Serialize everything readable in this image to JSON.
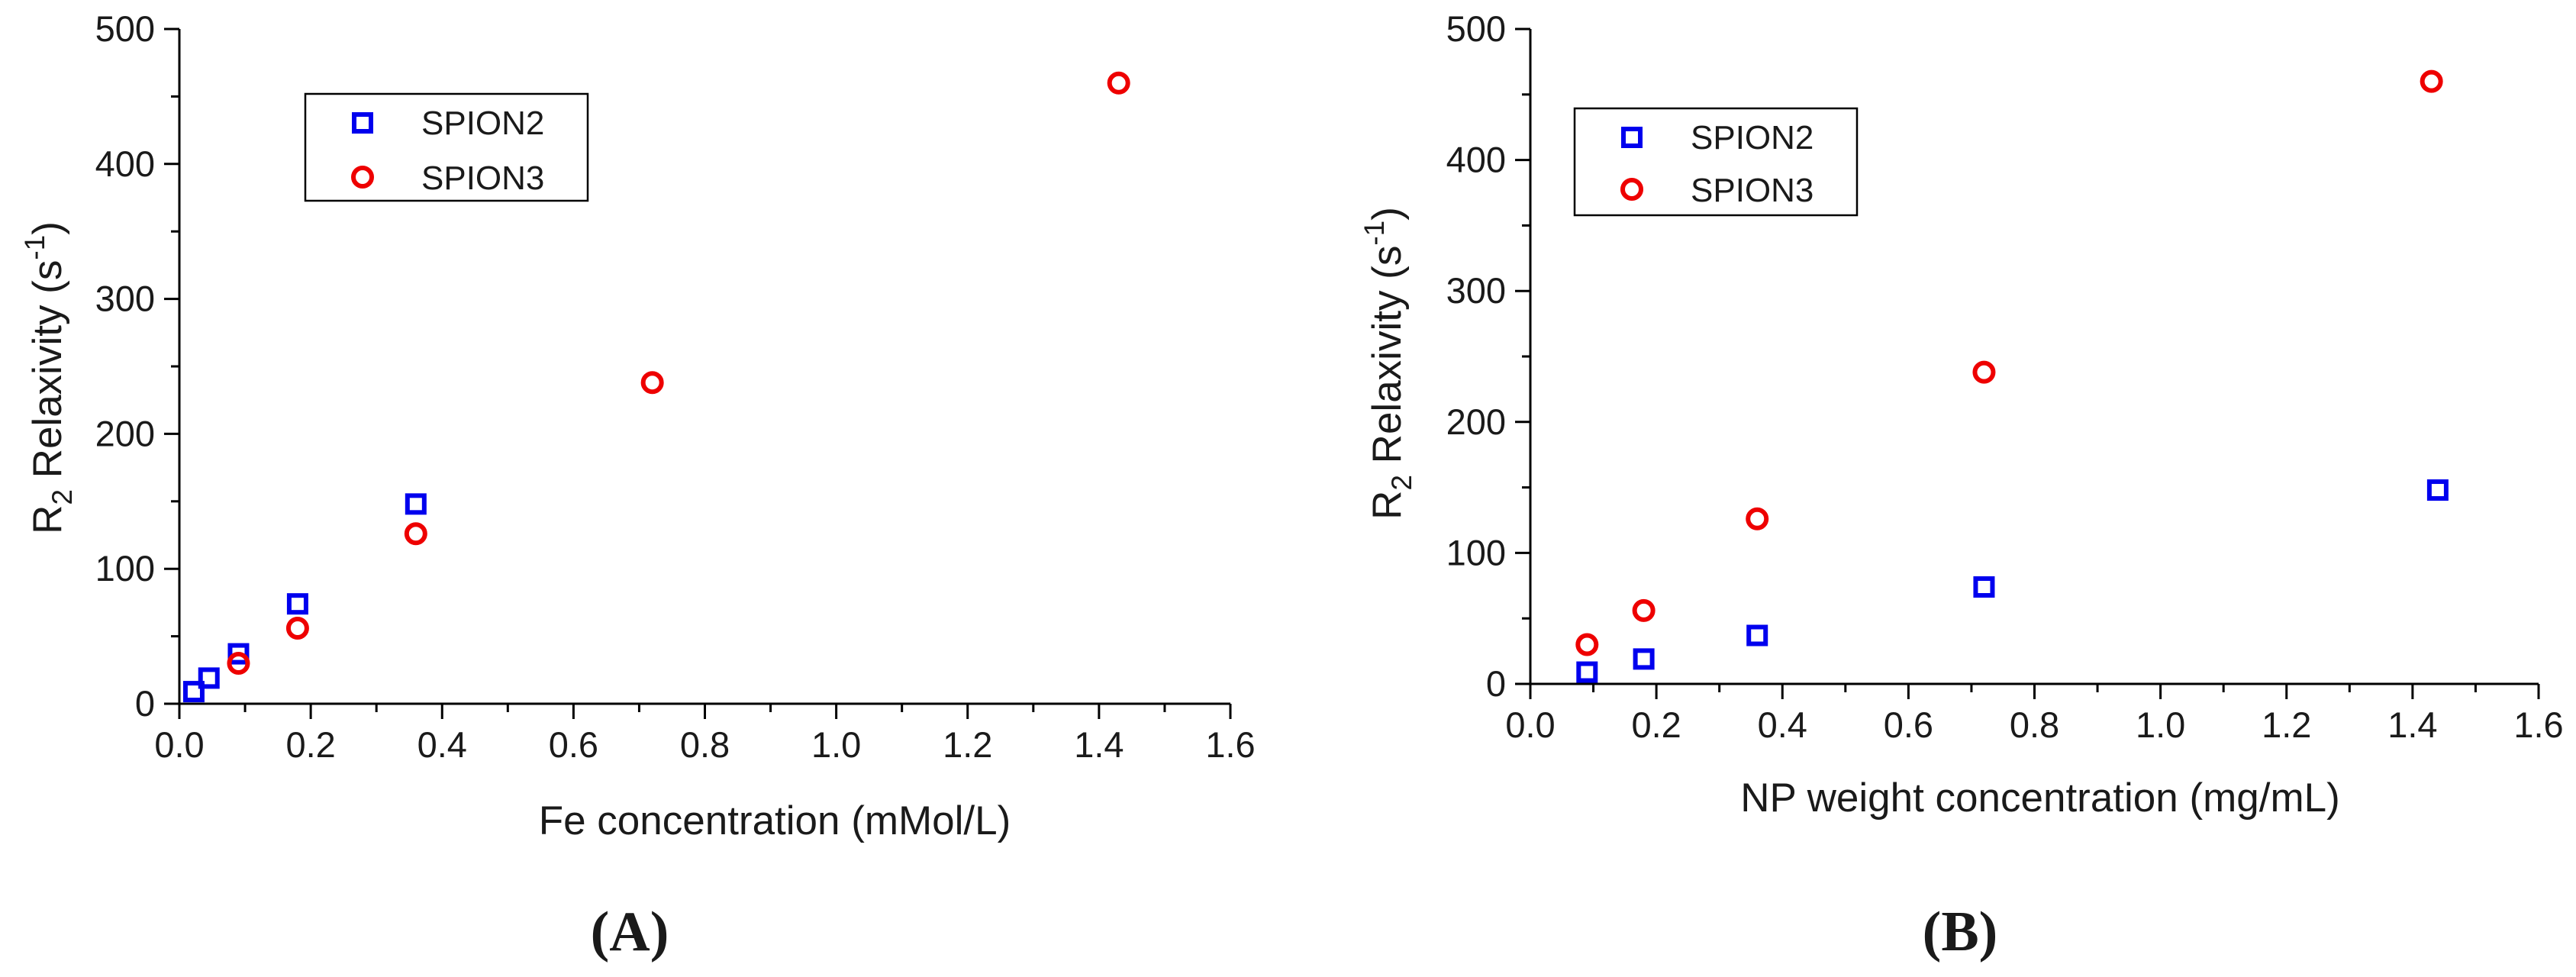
{
  "chart_data": [
    {
      "type": "scatter",
      "panel_label": "(A)",
      "xlabel": "Fe concentration (mMol/L)",
      "ylabel": {
        "main": "R",
        "sub": "2",
        "rest": " Relaxivity (s",
        "sup": "-1",
        "close": ")"
      },
      "xlim": [
        0.0,
        1.6
      ],
      "ylim": [
        0,
        500
      ],
      "xticks": [
        "0.0",
        "0.2",
        "0.4",
        "0.6",
        "0.8",
        "1.0",
        "1.2",
        "1.4",
        "1.6"
      ],
      "yticks": [
        "0",
        "100",
        "200",
        "300",
        "400",
        "500"
      ],
      "legend_position": "top-left",
      "series": [
        {
          "name": "SPION2",
          "marker": "square",
          "color": "#0000ee",
          "x": [
            0.022,
            0.045,
            0.09,
            0.18,
            0.36
          ],
          "y": [
            9,
            19,
            37,
            74,
            148
          ]
        },
        {
          "name": "SPION3",
          "marker": "circle",
          "color": "#ee0000",
          "x": [
            0.09,
            0.18,
            0.36,
            0.72,
            1.43
          ],
          "y": [
            30,
            56,
            126,
            238,
            460
          ]
        }
      ]
    },
    {
      "type": "scatter",
      "panel_label": "(B)",
      "xlabel": "NP weight concentration (mg/mL)",
      "ylabel": {
        "main": "R",
        "sub": "2",
        "rest": " Relaxivity (s",
        "sup": "-1",
        "close": ")"
      },
      "xlim": [
        0.0,
        1.6
      ],
      "ylim": [
        0,
        500
      ],
      "xticks": [
        "0.0",
        "0.2",
        "0.4",
        "0.6",
        "0.8",
        "1.0",
        "1.2",
        "1.4",
        "1.6"
      ],
      "yticks": [
        "0",
        "100",
        "200",
        "300",
        "400",
        "500"
      ],
      "legend_position": "top-left",
      "series": [
        {
          "name": "SPION2",
          "marker": "square",
          "color": "#0000ee",
          "x": [
            0.09,
            0.18,
            0.36,
            0.72,
            1.44
          ],
          "y": [
            9,
            19,
            37,
            74,
            148
          ]
        },
        {
          "name": "SPION3",
          "marker": "circle",
          "color": "#ee0000",
          "x": [
            0.09,
            0.18,
            0.36,
            0.72,
            1.43
          ],
          "y": [
            30,
            56,
            126,
            238,
            460
          ]
        }
      ]
    }
  ]
}
